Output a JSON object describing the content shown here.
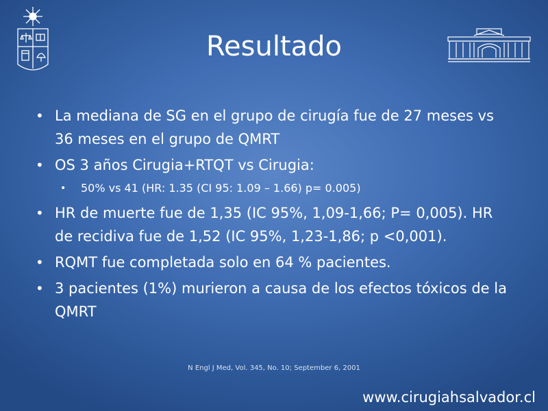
{
  "slide": {
    "title": "Resultado",
    "bullets": [
      "La mediana de SG  en el grupo  de cirugía fue de 27 meses vs 36 meses en el grupo de QMRT",
      "OS 3 años Cirugia+RTQT vs Cirugia:",
      "50% vs 41 (HR: 1.35 (CI 95: 1.09 – 1.66) p= 0.005)",
      "HR de muerte fue de 1,35 (IC 95%, 1,09-1,66; P= 0,005). HR de recidiva fue de 1,52 (IC 95%, 1,23-1,86; p <0,001).",
      "RQMT fue completada solo en 64 % pacientes.",
      "3 pacientes (1%) murieron a causa de los efectos tóxicos de la QMRT"
    ],
    "citation": "N Engl J Med, Vol. 345, No. 10; September 6, 2001",
    "website": "www.cirugiahsalvador.cl"
  }
}
